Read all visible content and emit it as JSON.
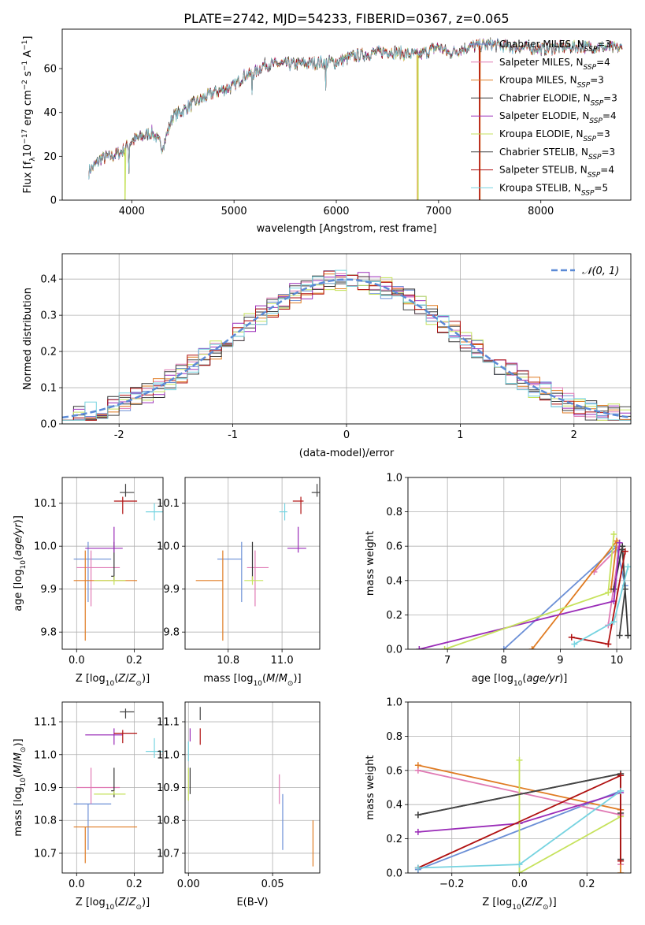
{
  "figure": {
    "title": "PLATE=2742, MJD=54233, FIBERID=0367, z=0.065"
  },
  "colors": {
    "chabrier_miles": "#6b8fd6",
    "salpeter_miles": "#e07ab4",
    "kroupa_miles": "#e07b22",
    "chabrier_elodie": "#333333",
    "salpeter_elodie": "#9a2cb8",
    "kroupa_elodie": "#c6e25c",
    "chabrier_stelib": "#444444",
    "salpeter_stelib": "#b01010",
    "kroupa_stelib": "#76d3e0",
    "gauss": "#5b8ad6",
    "grid": "#b0b0b0"
  },
  "chart_data": [
    {
      "id": "spectrum",
      "type": "line",
      "xlabel": "wavelength [Angstrom, rest frame]",
      "ylabel": "Flux [f_λ10^-17 erg cm^-2 s^-1 A^-1]",
      "xlim": [
        3320,
        8880
      ],
      "ylim": [
        0,
        78
      ],
      "xticks": [
        4000,
        5000,
        6000,
        7000,
        8000
      ],
      "yticks": [
        0,
        20,
        40,
        60
      ],
      "grid": false,
      "legend": "top-right",
      "continuum": [
        [
          3580,
          13
        ],
        [
          3700,
          19
        ],
        [
          3800,
          20
        ],
        [
          3900,
          22
        ],
        [
          4000,
          27
        ],
        [
          4200,
          31
        ],
        [
          4300,
          24
        ],
        [
          4400,
          38
        ],
        [
          4600,
          44
        ],
        [
          4800,
          49
        ],
        [
          5000,
          52
        ],
        [
          5100,
          57
        ],
        [
          5200,
          58
        ],
        [
          5300,
          62
        ],
        [
          5600,
          62
        ],
        [
          5900,
          63
        ],
        [
          6000,
          63
        ],
        [
          6200,
          66
        ],
        [
          6500,
          68
        ],
        [
          6800,
          66
        ],
        [
          7000,
          70
        ],
        [
          7100,
          67
        ],
        [
          7300,
          70
        ],
        [
          7500,
          71
        ],
        [
          7700,
          70
        ],
        [
          8000,
          69
        ],
        [
          8300,
          70
        ],
        [
          8500,
          70
        ],
        [
          8800,
          69
        ]
      ],
      "dips": [
        {
          "x": 3934,
          "to": 0
        },
        {
          "x": 6795,
          "to": 0
        },
        {
          "x": 7405,
          "to": 0
        },
        {
          "x": 5175,
          "to": 48
        },
        {
          "x": 5895,
          "to": 50
        },
        {
          "x": 4305,
          "to": 25
        },
        {
          "x": 3970,
          "to": 12
        }
      ],
      "series": [
        {
          "name": "Chabrier MILES, N_SSP=3",
          "sub": "SSP",
          "pre": "Chabrier MILES, N",
          "post": "=3",
          "color": "#6b8fd6"
        },
        {
          "name": "Salpeter MILES, N_SSP=4",
          "sub": "SSP",
          "pre": "Salpeter MILES, N",
          "post": "=4",
          "color": "#e07ab4"
        },
        {
          "name": "Kroupa MILES, N_SSP=3",
          "sub": "SSP",
          "pre": "Kroupa MILES, N",
          "post": "=3",
          "color": "#e07b22"
        },
        {
          "name": "Chabrier ELODIE, N_SSP=3",
          "sub": "SSP",
          "pre": "Chabrier ELODIE, N",
          "post": "=3",
          "color": "#333333"
        },
        {
          "name": "Salpeter ELODIE, N_SSP=4",
          "sub": "SSP",
          "pre": "Salpeter ELODIE, N",
          "post": "=4",
          "color": "#9a2cb8"
        },
        {
          "name": "Kroupa ELODIE, N_SSP=3",
          "sub": "SSP",
          "pre": "Kroupa ELODIE, N",
          "post": "=3",
          "color": "#c6e25c"
        },
        {
          "name": "Chabrier STELIB, N_SSP=3",
          "sub": "SSP",
          "pre": "Chabrier STELIB, N",
          "post": "=3",
          "color": "#444444"
        },
        {
          "name": "Salpeter STELIB, N_SSP=4",
          "sub": "SSP",
          "pre": "Salpeter STELIB, N",
          "post": "=4",
          "color": "#b01010"
        },
        {
          "name": "Kroupa STELIB, N_SSP=5",
          "sub": "SSP",
          "pre": "Kroupa STELIB, N",
          "post": "=5",
          "color": "#76d3e0"
        }
      ]
    },
    {
      "id": "residual_hist",
      "type": "area",
      "xlabel": "(data-model)/error",
      "ylabel": "Normed distribution",
      "xlim": [
        -2.5,
        2.5
      ],
      "ylim": [
        0,
        0.47
      ],
      "xticks": [
        -2,
        -1,
        0,
        1,
        2
      ],
      "yticks": [
        0.0,
        0.1,
        0.2,
        0.3,
        0.4
      ],
      "grid": true,
      "legend": "top-right",
      "legend_label": "𝒩(0, 1)",
      "bin_width": 0.1
    },
    {
      "id": "age_vs_Z",
      "type": "scatter",
      "xlabel": "Z [log10(Z/Z⊙)]",
      "ylabel": "age [log10(age/yr)]",
      "xlim": [
        -0.05,
        0.3
      ],
      "ylim": [
        9.76,
        10.16
      ],
      "xticks": [
        0.0,
        0.2
      ],
      "yticks": [
        9.8,
        9.9,
        10.0,
        10.1
      ],
      "grid": true,
      "points": [
        {
          "color": "#6b8fd6",
          "x": 0.04,
          "xe": [
            0.05,
            0.08
          ],
          "y": 9.97,
          "ye": [
            0.1,
            0.04
          ]
        },
        {
          "color": "#e07ab4",
          "x": 0.05,
          "xe": [
            0.05,
            0.1
          ],
          "y": 9.95,
          "ye": [
            0.09,
            0.04
          ]
        },
        {
          "color": "#e07b22",
          "x": 0.03,
          "xe": [
            0.04,
            0.18
          ],
          "y": 9.92,
          "ye": [
            0.14,
            0.07
          ]
        },
        {
          "color": "#333333",
          "x": 0.13,
          "xe": [
            0.01,
            0.0
          ],
          "y": 9.93,
          "ye": [
            0.01,
            0.08
          ]
        },
        {
          "color": "#9a2cb8",
          "x": 0.13,
          "xe": [
            0.1,
            0.03
          ],
          "y": 9.995,
          "ye": [
            0.01,
            0.05
          ]
        },
        {
          "color": "#c6e25c",
          "x": 0.13,
          "xe": [
            0.07,
            0.04
          ],
          "y": 9.92,
          "ye": [
            0.01,
            0.01
          ]
        },
        {
          "color": "#444444",
          "x": 0.17,
          "xe": [
            0.02,
            0.03
          ],
          "y": 10.125,
          "ye": [
            0.01,
            0.02
          ]
        },
        {
          "color": "#b01010",
          "x": 0.16,
          "xe": [
            0.03,
            0.05
          ],
          "y": 10.105,
          "ye": [
            0.03,
            0.01
          ]
        },
        {
          "color": "#76d3e0",
          "x": 0.27,
          "xe": [
            0.03,
            0.03
          ],
          "y": 10.08,
          "ye": [
            0.02,
            0.02
          ]
        }
      ]
    },
    {
      "id": "age_vs_mass",
      "type": "scatter",
      "xlabel": "mass [log10(M/M⊙)]",
      "ylabel": "",
      "xlim": [
        10.64,
        11.14
      ],
      "ylim": [
        9.76,
        10.16
      ],
      "xticks": [
        10.8,
        11.0
      ],
      "yticks": [
        9.8,
        9.9,
        10.0,
        10.1
      ],
      "grid": true,
      "points": [
        {
          "color": "#6b8fd6",
          "x": 10.85,
          "xe": [
            0.09,
            0.0
          ],
          "y": 9.97,
          "ye": [
            0.1,
            0.04
          ]
        },
        {
          "color": "#e07ab4",
          "x": 10.9,
          "xe": [
            0.03,
            0.05
          ],
          "y": 9.95,
          "ye": [
            0.09,
            0.04
          ]
        },
        {
          "color": "#e07b22",
          "x": 10.78,
          "xe": [
            0.1,
            0.0
          ],
          "y": 9.92,
          "ye": [
            0.14,
            0.07
          ]
        },
        {
          "color": "#333333",
          "x": 10.89,
          "xe": [
            0.0,
            0.0
          ],
          "y": 9.93,
          "ye": [
            0.01,
            0.08
          ]
        },
        {
          "color": "#9a2cb8",
          "x": 11.06,
          "xe": [
            0.04,
            0.03
          ],
          "y": 9.995,
          "ye": [
            0.01,
            0.05
          ]
        },
        {
          "color": "#c6e25c",
          "x": 10.89,
          "xe": [
            0.03,
            0.04
          ],
          "y": 9.92,
          "ye": [
            0.01,
            0.01
          ]
        },
        {
          "color": "#444444",
          "x": 11.13,
          "xe": [
            0.02,
            0.01
          ],
          "y": 10.125,
          "ye": [
            0.01,
            0.02
          ]
        },
        {
          "color": "#b01010",
          "x": 11.07,
          "xe": [
            0.03,
            0.01
          ],
          "y": 10.105,
          "ye": [
            0.03,
            0.01
          ]
        },
        {
          "color": "#76d3e0",
          "x": 11.01,
          "xe": [
            0.02,
            0.01
          ],
          "y": 10.08,
          "ye": [
            0.02,
            0.02
          ]
        }
      ]
    },
    {
      "id": "weight_vs_age",
      "type": "line",
      "xlabel": "age [log10(age/yr)]",
      "ylabel": "mass weight",
      "xlim": [
        6.3,
        10.25
      ],
      "ylim": [
        0,
        1
      ],
      "xticks": [
        7,
        8,
        9,
        10
      ],
      "yticks": [
        0.0,
        0.2,
        0.4,
        0.6,
        0.8,
        1.0
      ],
      "grid": true,
      "series": [
        {
          "color": "#6b8fd6",
          "x": [
            8.0,
            10.0,
            10.15
          ],
          "y": [
            0.0,
            0.6,
            0.37
          ]
        },
        {
          "color": "#e07ab4",
          "x": [
            9.6,
            10.05,
            9.85
          ],
          "y": [
            0.45,
            0.6,
            0.14
          ]
        },
        {
          "color": "#e07b22",
          "x": [
            8.5,
            10.0,
            9.9
          ],
          "y": [
            0.0,
            0.63,
            0.35
          ]
        },
        {
          "color": "#333333",
          "x": [
            9.95,
            10.1,
            10.2
          ],
          "y": [
            0.35,
            0.6,
            0.08
          ]
        },
        {
          "color": "#9a2cb8",
          "x": [
            6.5,
            9.95,
            10.05
          ],
          "y": [
            0.0,
            0.28,
            0.62
          ]
        },
        {
          "color": "#c6e25c",
          "x": [
            6.95,
            9.85,
            9.95
          ],
          "y": [
            0.0,
            0.33,
            0.67
          ]
        },
        {
          "color": "#444444",
          "x": [
            10.1,
            10.15,
            10.05
          ],
          "y": [
            0.58,
            0.35,
            0.08
          ]
        },
        {
          "color": "#b01010",
          "x": [
            9.2,
            9.85,
            10.15
          ],
          "y": [
            0.07,
            0.03,
            0.57
          ]
        },
        {
          "color": "#76d3e0",
          "x": [
            9.25,
            9.95,
            10.2
          ],
          "y": [
            0.03,
            0.16,
            0.48
          ]
        }
      ]
    },
    {
      "id": "mass_vs_Z",
      "type": "scatter",
      "xlabel": "Z [log10(Z/Z⊙)]",
      "ylabel": "mass [log10(M/M⊙)]",
      "xlim": [
        -0.05,
        0.3
      ],
      "ylim": [
        10.64,
        11.16
      ],
      "xticks": [
        0.0,
        0.2
      ],
      "yticks": [
        10.7,
        10.8,
        10.9,
        11.0,
        11.1
      ],
      "grid": true,
      "points": [
        {
          "color": "#6b8fd6",
          "x": 0.04,
          "xe": [
            0.05,
            0.08
          ],
          "y": 10.85,
          "ye": [
            0.14,
            0.0
          ]
        },
        {
          "color": "#e07ab4",
          "x": 0.05,
          "xe": [
            0.05,
            0.1
          ],
          "y": 10.9,
          "ye": [
            0.05,
            0.06
          ]
        },
        {
          "color": "#e07b22",
          "x": 0.03,
          "xe": [
            0.04,
            0.18
          ],
          "y": 10.78,
          "ye": [
            0.11,
            0.0
          ]
        },
        {
          "color": "#333333",
          "x": 0.13,
          "xe": [
            0.01,
            0.0
          ],
          "y": 10.89,
          "ye": [
            0.02,
            0.07
          ]
        },
        {
          "color": "#9a2cb8",
          "x": 0.13,
          "xe": [
            0.1,
            0.03
          ],
          "y": 11.06,
          "ye": [
            0.03,
            0.02
          ]
        },
        {
          "color": "#c6e25c",
          "x": 0.13,
          "xe": [
            0.07,
            0.04
          ],
          "y": 10.88,
          "ye": [
            0.0,
            0.01
          ]
        },
        {
          "color": "#444444",
          "x": 0.17,
          "xe": [
            0.02,
            0.03
          ],
          "y": 11.13,
          "ye": [
            0.02,
            0.01
          ]
        },
        {
          "color": "#b01010",
          "x": 0.16,
          "xe": [
            0.03,
            0.05
          ],
          "y": 11.065,
          "ye": [
            0.03,
            0.01
          ]
        },
        {
          "color": "#76d3e0",
          "x": 0.27,
          "xe": [
            0.03,
            0.03
          ],
          "y": 11.01,
          "ye": [
            0.02,
            0.04
          ]
        }
      ]
    },
    {
      "id": "mass_vs_ebv",
      "type": "scatter",
      "xlabel": "E(B-V)",
      "ylabel": "",
      "xlim": [
        -0.002,
        0.078
      ],
      "ylim": [
        10.64,
        11.16
      ],
      "xticks": [
        0.0,
        0.05
      ],
      "yticks": [
        10.7,
        10.8,
        10.9,
        11.0,
        11.1
      ],
      "grid": true,
      "points": [
        {
          "color": "#6b8fd6",
          "x": 0.056,
          "xe": [
            0,
            0
          ],
          "y": 10.78,
          "ye": [
            0.07,
            0.1
          ]
        },
        {
          "color": "#e07ab4",
          "x": 0.054,
          "xe": [
            0,
            0
          ],
          "y": 10.89,
          "ye": [
            0.04,
            0.05
          ]
        },
        {
          "color": "#e07b22",
          "x": 0.074,
          "xe": [
            0,
            0
          ],
          "y": 10.73,
          "ye": [
            0.07,
            0.07
          ]
        },
        {
          "color": "#333333",
          "x": 0.001,
          "xe": [
            0,
            0
          ],
          "y": 10.9,
          "ye": [
            0.02,
            0.06
          ]
        },
        {
          "color": "#9a2cb8",
          "x": 0.001,
          "xe": [
            0,
            0
          ],
          "y": 11.06,
          "ye": [
            0.02,
            0.02
          ]
        },
        {
          "color": "#c6e25c",
          "x": 0.0,
          "xe": [
            0,
            0
          ],
          "y": 10.9,
          "ye": [
            0.04,
            0.06
          ]
        },
        {
          "color": "#444444",
          "x": 0.007,
          "xe": [
            0,
            0
          ],
          "y": 11.125,
          "ye": [
            0.02,
            0.02
          ]
        },
        {
          "color": "#b01010",
          "x": 0.007,
          "xe": [
            0,
            0
          ],
          "y": 11.06,
          "ye": [
            0.03,
            0.02
          ]
        },
        {
          "color": "#76d3e0",
          "x": 0.0,
          "xe": [
            0,
            0
          ],
          "y": 11.02,
          "ye": [
            0.04,
            0.02
          ]
        }
      ]
    },
    {
      "id": "weight_vs_Z",
      "type": "line",
      "xlabel": "Z [log10(Z/Z⊙)]",
      "ylabel": "mass weight",
      "xlim": [
        -0.33,
        0.33
      ],
      "ylim": [
        0,
        1
      ],
      "xticks": [
        -0.2,
        0.0,
        0.2
      ],
      "yticks": [
        0.0,
        0.2,
        0.4,
        0.6,
        0.8,
        1.0
      ],
      "grid": true,
      "series": [
        {
          "color": "#6b8fd6",
          "x": [
            -0.3,
            0.3,
            0.3
          ],
          "y": [
            0.02,
            0.48,
            0.37
          ]
        },
        {
          "color": "#e07ab4",
          "x": [
            -0.3,
            0.3,
            0.3
          ],
          "y": [
            0.6,
            0.34,
            0.05
          ]
        },
        {
          "color": "#e07b22",
          "x": [
            -0.3,
            0.3,
            0.3
          ],
          "y": [
            0.63,
            0.37,
            0.0
          ]
        },
        {
          "color": "#333333",
          "x": [
            -0.3,
            0.3,
            0.3
          ],
          "y": [
            0.34,
            0.58,
            0.08
          ]
        },
        {
          "color": "#9a2cb8",
          "x": [
            -0.3,
            0.0,
            0.3
          ],
          "y": [
            0.24,
            0.29,
            0.47
          ]
        },
        {
          "color": "#c6e25c",
          "x": [
            0.0,
            0.0,
            0.3
          ],
          "y": [
            0.66,
            0.0,
            0.33
          ]
        },
        {
          "color": "#444444",
          "x": [
            -0.3,
            0.3,
            0.3
          ],
          "y": [
            0.34,
            0.58,
            0.35
          ]
        },
        {
          "color": "#b01010",
          "x": [
            -0.3,
            0.3,
            0.3
          ],
          "y": [
            0.03,
            0.57,
            0.07
          ]
        },
        {
          "color": "#76d3e0",
          "x": [
            -0.3,
            0.0,
            0.3
          ],
          "y": [
            0.03,
            0.05,
            0.48
          ]
        }
      ]
    }
  ]
}
